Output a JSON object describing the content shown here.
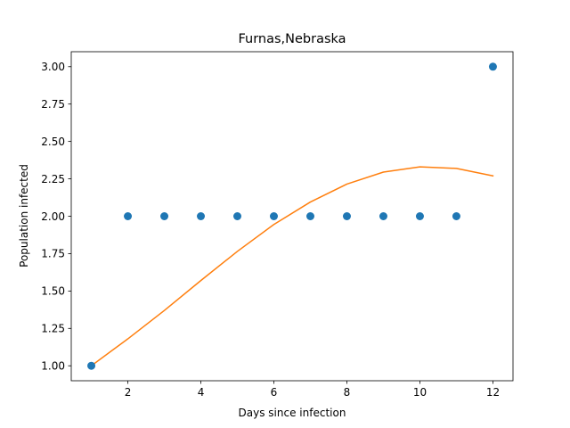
{
  "chart_data": {
    "type": "scatter",
    "title": "Furnas,Nebraska",
    "xlabel": "Days since infection",
    "ylabel": "Population infected",
    "xlim": [
      0.45,
      12.55
    ],
    "ylim": [
      0.9,
      3.1
    ],
    "xticks": [
      2,
      4,
      6,
      8,
      10,
      12
    ],
    "xtick_labels": [
      "2",
      "4",
      "6",
      "8",
      "10",
      "12"
    ],
    "yticks": [
      1.0,
      1.25,
      1.5,
      1.75,
      2.0,
      2.25,
      2.5,
      2.75,
      3.0
    ],
    "ytick_labels": [
      "1.00",
      "1.25",
      "1.50",
      "1.75",
      "2.00",
      "2.25",
      "2.50",
      "2.75",
      "3.00"
    ],
    "grid": false,
    "series": [
      {
        "name": "observed",
        "kind": "scatter",
        "color": "#1f77b4",
        "x": [
          1,
          2,
          3,
          4,
          5,
          6,
          7,
          8,
          9,
          10,
          11,
          12
        ],
        "y": [
          1,
          2,
          2,
          2,
          2,
          2,
          2,
          2,
          2,
          2,
          2,
          3
        ]
      },
      {
        "name": "fit",
        "kind": "line",
        "color": "#ff7f0e",
        "x": [
          1,
          2,
          3,
          4,
          5,
          6,
          7,
          8,
          9,
          10,
          11,
          12
        ],
        "y": [
          1.0,
          1.18,
          1.37,
          1.57,
          1.765,
          1.945,
          2.095,
          2.215,
          2.295,
          2.33,
          2.32,
          2.27
        ]
      }
    ]
  }
}
